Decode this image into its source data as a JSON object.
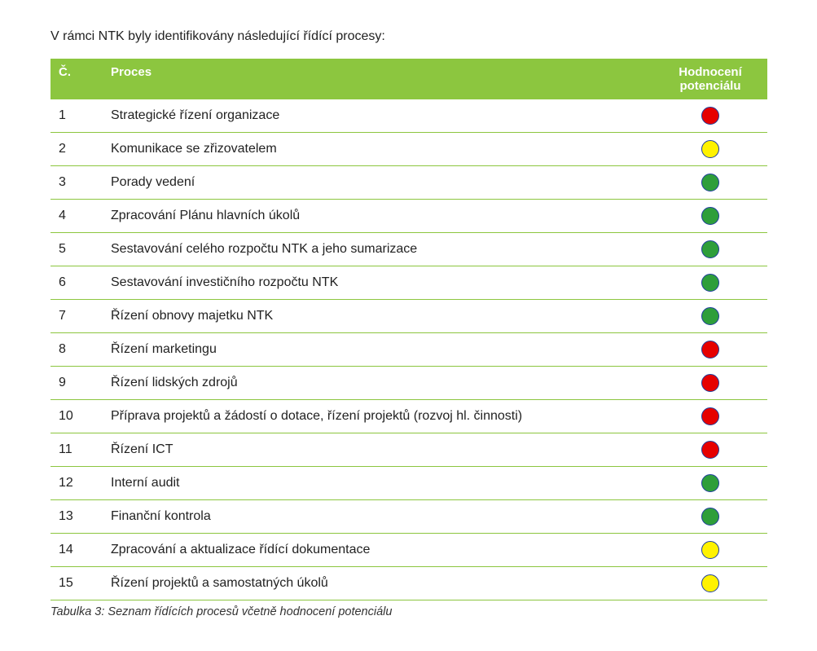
{
  "intro_text": "V rámci NTK byly identifikovány následující řídící procesy:",
  "header": {
    "col_num": "Č.",
    "col_process": "Proces",
    "col_rating": "Hodnocení potenciálu"
  },
  "header_bg_color": "#8CC63F",
  "header_text_color": "#FFFFFF",
  "row_border_color": "#8CC63F",
  "dot_border_color": "#1F3E9E",
  "dot_border_width": 1.5,
  "rating_colors": {
    "red": "#E60000",
    "yellow": "#FFF200",
    "green": "#2E9E3A"
  },
  "rows": [
    {
      "num": "1",
      "process": "Strategické řízení organizace",
      "rating": "red"
    },
    {
      "num": "2",
      "process": "Komunikace se zřizovatelem",
      "rating": "yellow"
    },
    {
      "num": "3",
      "process": "Porady vedení",
      "rating": "green"
    },
    {
      "num": "4",
      "process": "Zpracování Plánu hlavních úkolů",
      "rating": "green"
    },
    {
      "num": "5",
      "process": "Sestavování celého rozpočtu NTK a jeho sumarizace",
      "rating": "green"
    },
    {
      "num": "6",
      "process": "Sestavování investičního rozpočtu NTK",
      "rating": "green"
    },
    {
      "num": "7",
      "process": "Řízení obnovy majetku  NTK",
      "rating": "green"
    },
    {
      "num": "8",
      "process": "Řízení marketingu",
      "rating": "red"
    },
    {
      "num": "9",
      "process": "Řízení lidských zdrojů",
      "rating": "red"
    },
    {
      "num": "10",
      "process": "Příprava projektů a žádostí o dotace, řízení projektů (rozvoj hl. činnosti)",
      "rating": "red"
    },
    {
      "num": "11",
      "process": "Řízení ICT",
      "rating": "red"
    },
    {
      "num": "12",
      "process": "Interní audit",
      "rating": "green"
    },
    {
      "num": "13",
      "process": "Finanční kontrola",
      "rating": "green"
    },
    {
      "num": "14",
      "process": "Zpracování a aktualizace řídící dokumentace",
      "rating": "yellow"
    },
    {
      "num": "15",
      "process": "Řízení projektů a samostatných úkolů",
      "rating": "yellow"
    }
  ],
  "caption": "Tabulka 3: Seznam řídících procesů včetně hodnocení potenciálu"
}
